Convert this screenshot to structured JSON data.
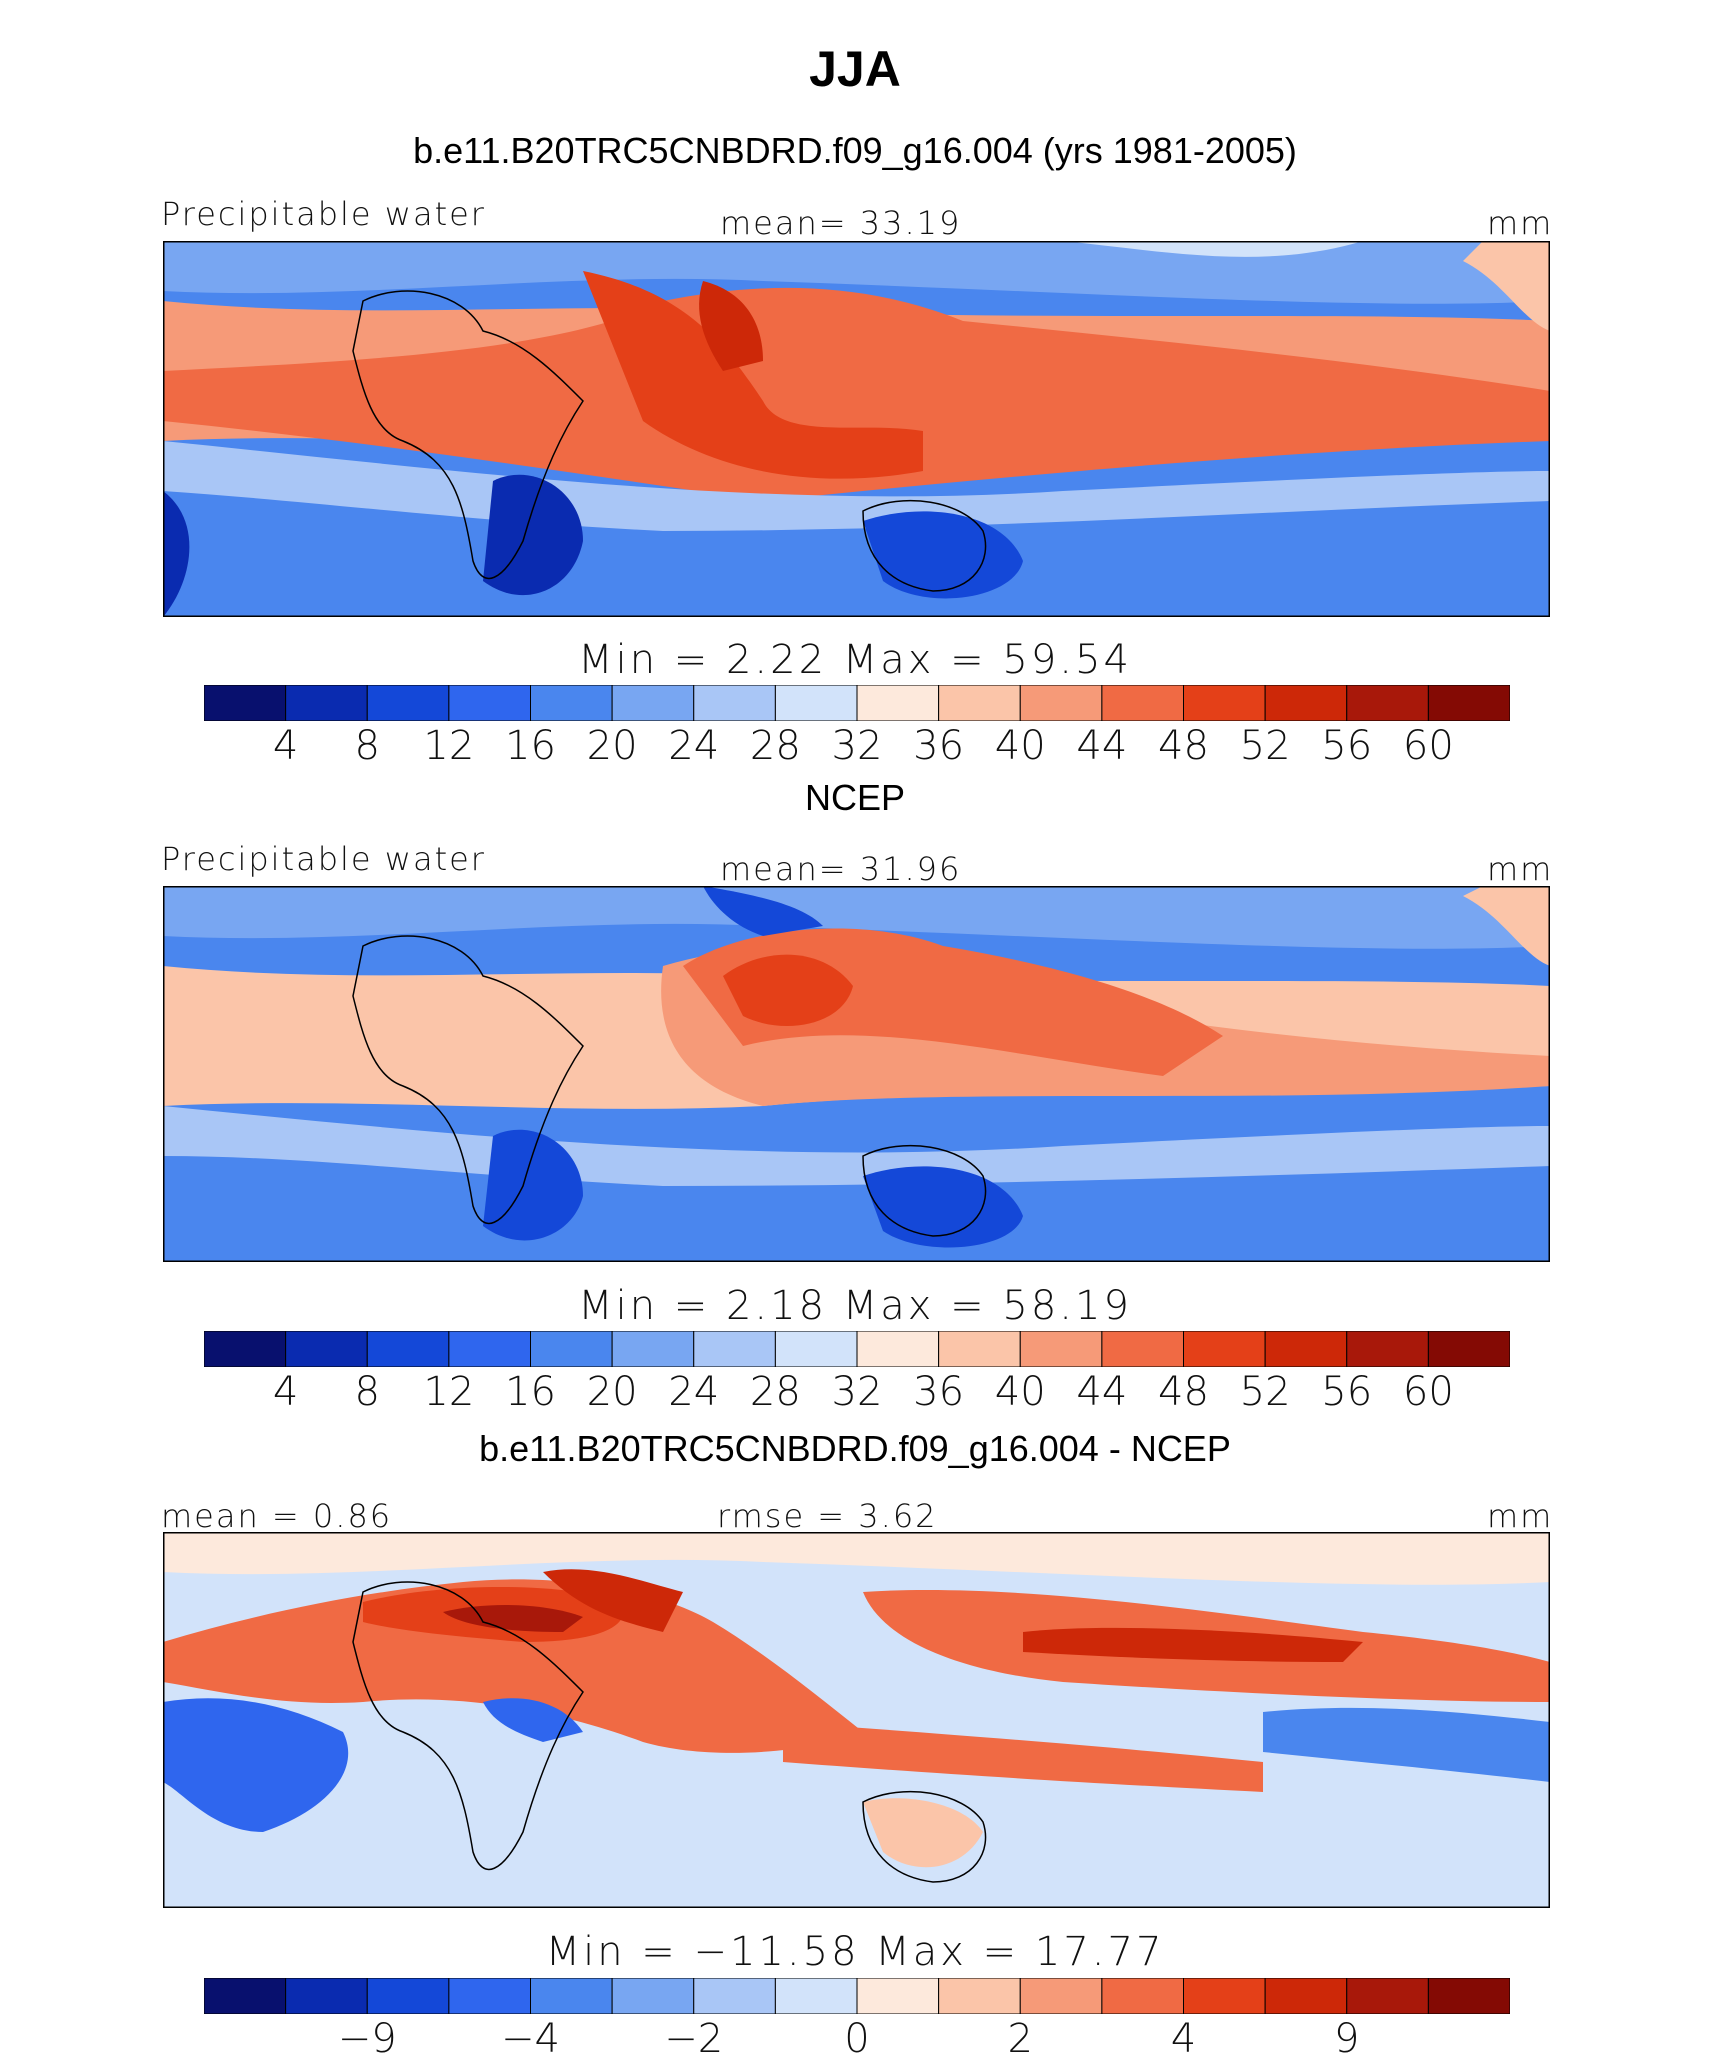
{
  "title": "JJA",
  "colors": [
    "#08106e",
    "#0a2bb0",
    "#1448d8",
    "#2f66ee",
    "#4a86ee",
    "#78a6f2",
    "#a9c6f6",
    "#d2e3fa",
    "#fde9dc",
    "#fbc5a9",
    "#f69a78",
    "#f06a44",
    "#e44018",
    "#cd2808",
    "#a8180a",
    "#840a04"
  ],
  "panels": [
    {
      "heading": "b.e11.B20TRC5CNBDRD.f09_g16.004 (yrs 1981-2005)",
      "left_label": "Precipitable water",
      "center_label": "mean=   33.19",
      "right_label": "mm",
      "minmax": "Min =    2.22  Max =   59.54",
      "tick_labels": [
        "4",
        "8",
        "12",
        "16",
        "20",
        "24",
        "28",
        "32",
        "36",
        "40",
        "44",
        "48",
        "52",
        "56",
        "60"
      ]
    },
    {
      "heading": "NCEP",
      "left_label": "Precipitable water",
      "center_label": "mean=   31.96",
      "right_label": "mm",
      "minmax": "Min =    2.18  Max =   58.19",
      "tick_labels": [
        "4",
        "8",
        "12",
        "16",
        "20",
        "24",
        "28",
        "32",
        "36",
        "40",
        "44",
        "48",
        "52",
        "56",
        "60"
      ]
    },
    {
      "heading": "b.e11.B20TRC5CNBDRD.f09_g16.004 - NCEP",
      "left_label": "mean =    0.86",
      "center_label": "rmse =    3.62",
      "right_label": "mm",
      "minmax": "Min = −11.58  Max =   17.77",
      "tick_labels": [
        "−9",
        "−4",
        "−2",
        "0",
        "2",
        "4",
        "9"
      ]
    }
  ]
}
